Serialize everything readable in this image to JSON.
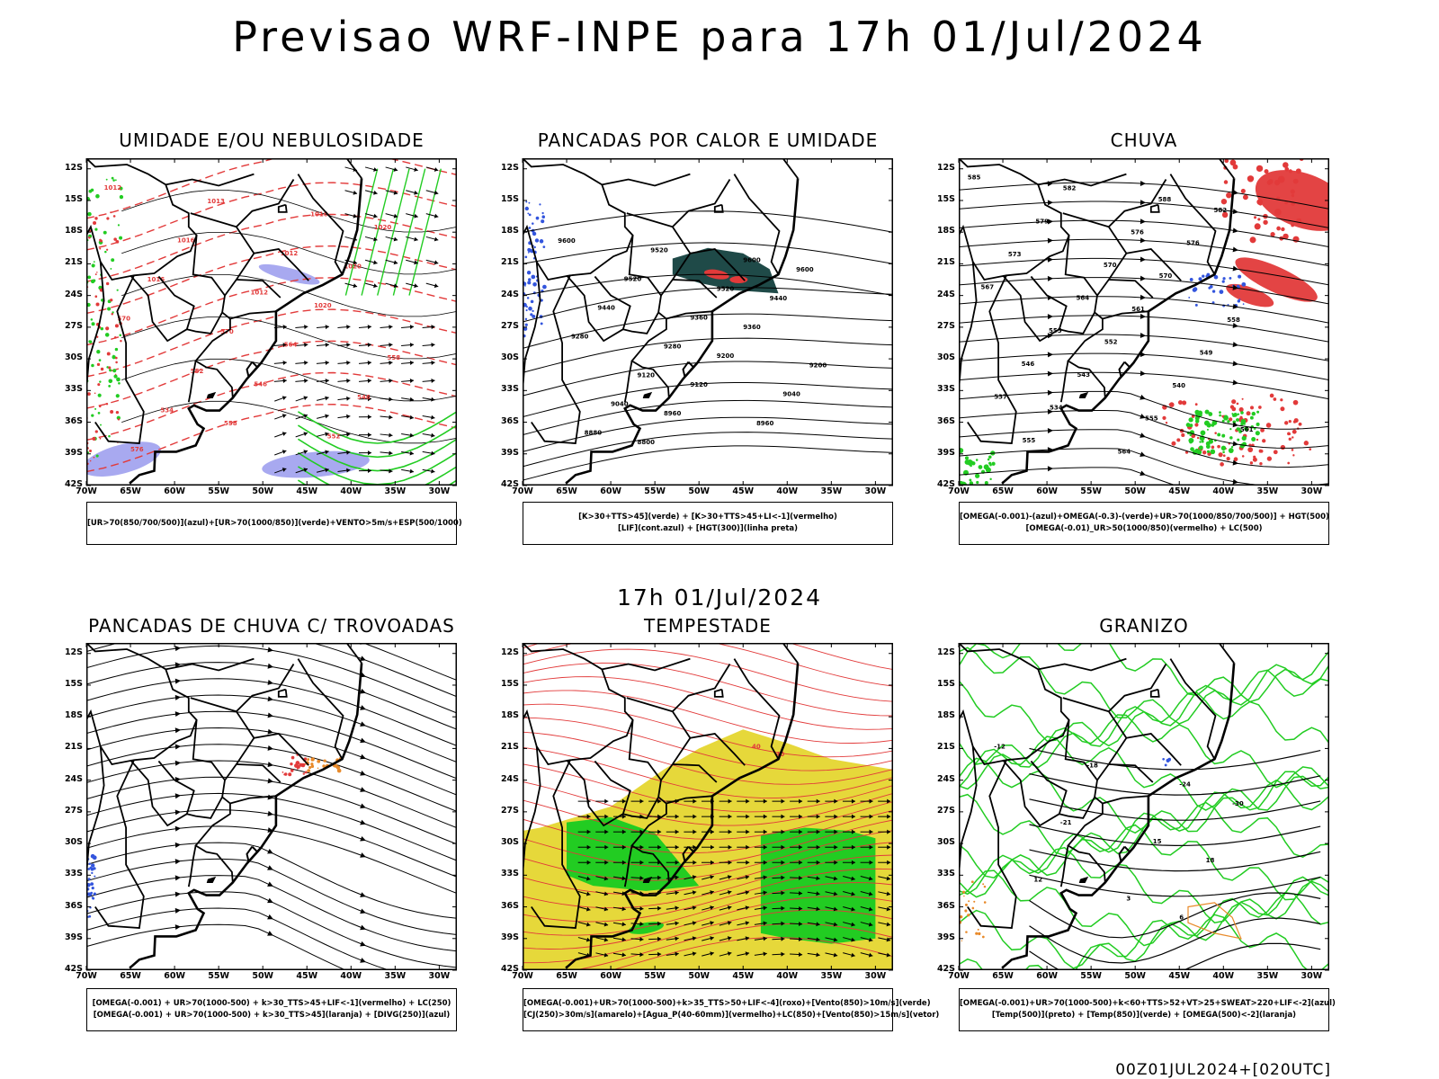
{
  "title": "Previsao WRF-INPE  para 17h 01/Jul/2024",
  "mid_title": "17h 01/Jul/2024",
  "footer": "00Z01JUL2024+[020UTC]",
  "axes": {
    "lat_ticks": [
      "12S",
      "15S",
      "18S",
      "21S",
      "24S",
      "27S",
      "30S",
      "33S",
      "36S",
      "39S",
      "42S"
    ],
    "lon_ticks": [
      "70W",
      "65W",
      "60W",
      "55W",
      "50W",
      "45W",
      "40W",
      "35W",
      "30W"
    ]
  },
  "colors": {
    "frame": "#000000",
    "contour_red": "#e23a3a",
    "contour_green": "#22cc22",
    "blue": "#3355dd",
    "lavender": "#9fa0ee",
    "teal_dark": "#1f4a48",
    "yellow": "#e6d83a",
    "orange": "#e88a2a"
  },
  "panels": [
    {
      "title": "UMIDADE E/OU NEBULOSIDADE",
      "legend": [
        "[UR>70(850/700/500)](azul)+[UR>70(1000/850)](verde)+VENTO>5m/s+ESP(500/1000)"
      ],
      "labels": [
        "1012",
        "1013",
        "1016",
        "1020",
        "1016",
        "1012",
        "1020",
        "1016",
        "1012",
        "1020",
        "570",
        "570",
        "564",
        "558",
        "552",
        "546",
        "546",
        "534",
        "558",
        "552",
        "576"
      ]
    },
    {
      "title": "PANCADAS POR CALOR E UMIDADE",
      "legend": [
        "[K>30+TTS>45](verde) + [K>30+TTS>45+LI<-1](vermelho)",
        "[LIF](cont.azul) + [HGT(300)](linha preta)"
      ],
      "labels": [
        "9600",
        "9520",
        "9600",
        "9600",
        "9520",
        "9520",
        "9440",
        "9440",
        "9360",
        "9360",
        "9280",
        "9280",
        "9200",
        "9200",
        "9120",
        "9120",
        "9040",
        "9040",
        "8960",
        "8960",
        "8880",
        "8800"
      ]
    },
    {
      "title": "CHUVA",
      "legend": [
        "[OMEGA(-0.001)-(azul)+OMEGA(-0.3)-(verde)+UR>70(1000/850/700/500)] + HGT(500)",
        "[OMEGA(-0.01)_UR>50(1000/850)(vermelho) + LC(500)"
      ],
      "labels": [
        "585",
        "582",
        "588",
        "582",
        "579",
        "576",
        "576",
        "573",
        "570",
        "570",
        "567",
        "564",
        "561",
        "558",
        "555",
        "552",
        "549",
        "546",
        "543",
        "540",
        "537",
        "534",
        "555",
        "561",
        "555",
        "564"
      ]
    },
    {
      "title": "PANCADAS DE CHUVA C/ TROVOADAS",
      "legend": [
        "[OMEGA(-0.001) + UR>70(1000-500) + k>30_TTS>45+LIF<-1](vermelho) + LC(250)",
        "[OMEGA(-0.001) + UR>70(1000-500) + k>30_TTS>45](laranja) + [DIVG(250)](azul)"
      ],
      "labels": []
    },
    {
      "title": "TEMPESTADE",
      "legend": [
        "[OMEGA(-0.001)+UR>70(1000-500)+k>35_TTS>50+LIF<-4](roxo)+[Vento(850)>10m/s](verde)",
        "[CJ(250)>30m/s](amarelo)+[Agua_P(40-60mm)](vermelho)+LC(850)+[Vento(850)>15m/s](vetor)"
      ],
      "labels": [
        "40",
        "40"
      ]
    },
    {
      "title": "GRANIZO",
      "legend": [
        "[OMEGA(-0.001)+UR>70(1000-500)+k<60+TTS>52+VT>25+SWEAT>220+LIF<-2](azul)",
        "[Temp(500)](preto) + [Temp(850)](verde) + [OMEGA(500)<-2](laranja)"
      ],
      "labels": [
        "-12",
        "-18",
        "-24",
        "-30",
        "-21",
        "15",
        "18",
        "12",
        "3",
        "6"
      ]
    }
  ]
}
